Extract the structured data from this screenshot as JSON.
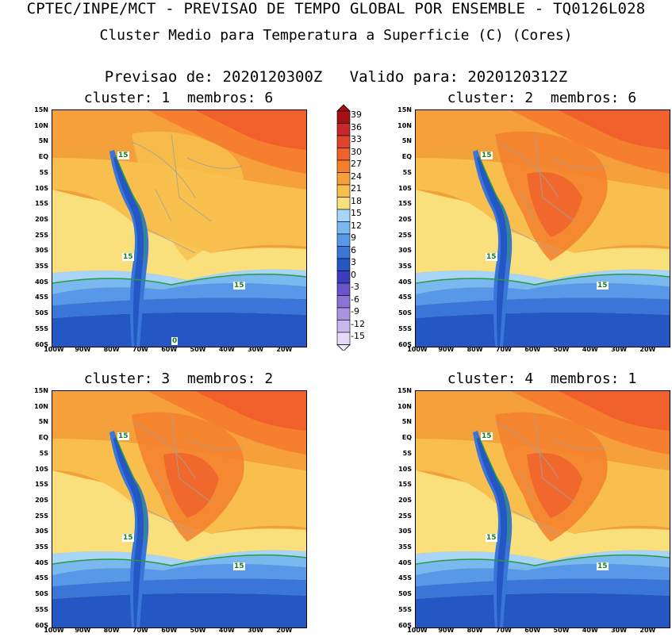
{
  "header": {
    "title_line1": "CPTEC/INPE/MCT - PREVISAO DE TEMPO GLOBAL POR ENSEMBLE - TQ0126L028",
    "title_line2": "Cluster Medio para Temperatura a Superficie (C) (Cores)",
    "title_line3": "Previsao de: 2020120300Z   Valido para: 2020120312Z"
  },
  "axes": {
    "lat_labels": [
      "15N",
      "10N",
      "5N",
      "EQ",
      "5S",
      "10S",
      "15S",
      "20S",
      "25S",
      "30S",
      "35S",
      "40S",
      "45S",
      "50S",
      "55S",
      "60S"
    ],
    "lon_labels": [
      "100W",
      "90W",
      "80W",
      "70W",
      "60W",
      "50W",
      "40W",
      "30W",
      "20W"
    ]
  },
  "colorbar": {
    "labels": [
      "39",
      "36",
      "33",
      "30",
      "27",
      "24",
      "21",
      "18",
      "15",
      "12",
      "9",
      "6",
      "3",
      "0",
      "-3",
      "-6",
      "-9",
      "-12",
      "-15"
    ],
    "colors": [
      "#a50f15",
      "#c8282a",
      "#e0442c",
      "#f0602a",
      "#f57f2e",
      "#f6a03b",
      "#f8bf4e",
      "#fae07c",
      "#a8d4f8",
      "#7ab8f0",
      "#5898e8",
      "#3a76d8",
      "#2456c4",
      "#3c3cc0",
      "#6a54cc",
      "#8a72d6",
      "#aa94e2",
      "#c8b8ee",
      "#e4dcf6"
    ]
  },
  "panels": [
    {
      "title": "cluster: 1  membros: 6",
      "contour_labels": [
        "15",
        "15",
        "15",
        "0"
      ]
    },
    {
      "title": "cluster: 2  membros: 6",
      "contour_labels": [
        "15",
        "15",
        "15"
      ]
    },
    {
      "title": "cluster: 3  membros: 2",
      "contour_labels": [
        "15",
        "15",
        "15"
      ]
    },
    {
      "title": "cluster: 4  membros: 1",
      "contour_labels": [
        "15",
        "15",
        "15"
      ]
    }
  ]
}
